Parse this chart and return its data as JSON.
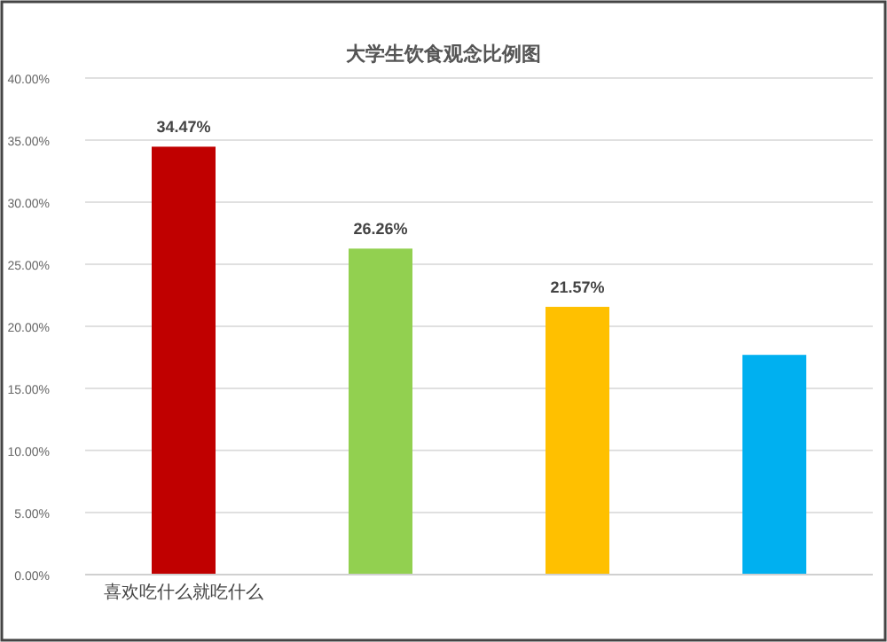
{
  "chart_data": {
    "type": "bar",
    "title": "大学生饮食观念比例图",
    "categories": [
      "喜欢吃什么就吃什么",
      null,
      null,
      null
    ],
    "values": [
      34.47,
      26.26,
      21.57,
      17.7
    ],
    "colors": [
      "#c00000",
      "#92d050",
      "#ffc000",
      "#00b0f0"
    ],
    "value_labels": [
      "34.47%",
      "26.26%",
      "21.57%",
      null
    ],
    "ylim": [
      0,
      40
    ],
    "yticks": [
      {
        "value": 0,
        "label": "0.00%"
      },
      {
        "value": 5,
        "label": "5.00%"
      },
      {
        "value": 10,
        "label": "10.00%"
      },
      {
        "value": 15,
        "label": "15.00%"
      },
      {
        "value": 20,
        "label": "20.00%"
      },
      {
        "value": 25,
        "label": "25.00%"
      },
      {
        "value": 30,
        "label": "30.00%"
      },
      {
        "value": 35,
        "label": "35.00%"
      },
      {
        "value": 40,
        "label": "40.00%"
      }
    ],
    "grid": "y"
  }
}
